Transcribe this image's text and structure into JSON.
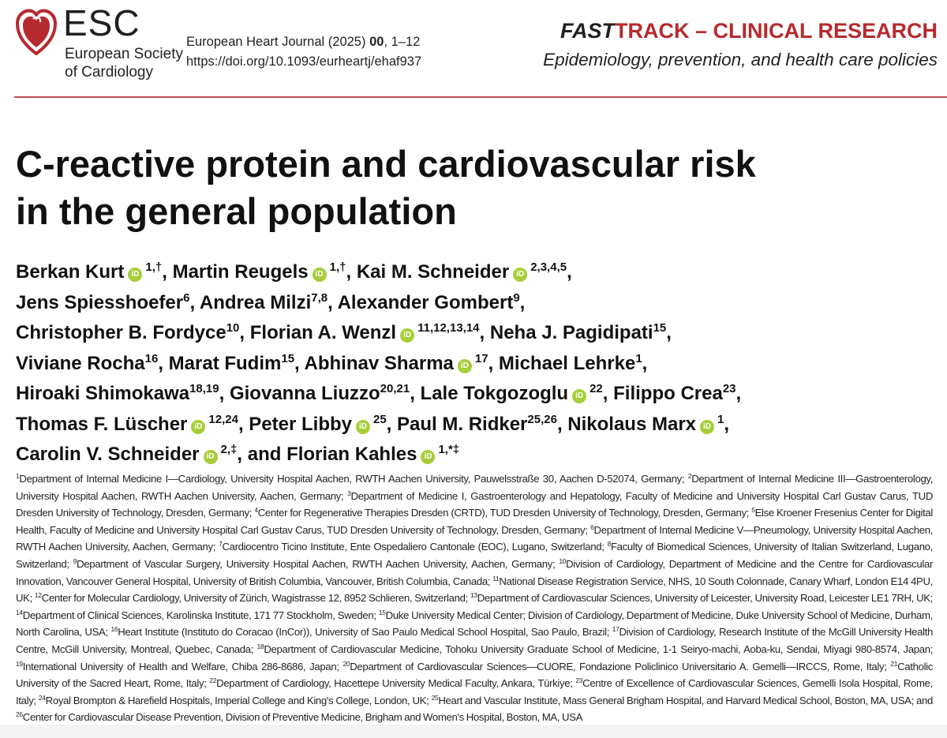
{
  "header": {
    "logo_text": "ESC",
    "society_line1": "European Society",
    "society_line2": "of Cardiology",
    "journal_name": "European Heart Journal (2025)",
    "journal_volume": "00",
    "journal_pages": ", 1–12",
    "doi": "https://doi.org/10.1093/eurheartj/ehaf937",
    "section_prefix": "FAST",
    "section_rest": "TRACK – CLINICAL RESEARCH",
    "subsection": "Epidemiology, prevention, and health care policies",
    "brand_color": "#b52a2e"
  },
  "title": {
    "line1": "C-reactive protein and cardiovascular risk",
    "line2": "in the general population"
  },
  "authors": {
    "lines": [
      [
        {
          "name": "Berkan Kurt",
          "orcid": true,
          "sup": "1,†",
          "sep": ", "
        },
        {
          "name": "Martin Reugels",
          "orcid": true,
          "sup": "1,†",
          "sep": ", "
        },
        {
          "name": "Kai M. Schneider",
          "orcid": true,
          "sup": "2,3,4,5",
          "sep": ","
        }
      ],
      [
        {
          "name": "Jens Spiesshoefer",
          "orcid": false,
          "sup": "6",
          "sep": ", "
        },
        {
          "name": "Andrea Milzi",
          "orcid": false,
          "sup": "7,8",
          "sep": ", "
        },
        {
          "name": "Alexander Gombert",
          "orcid": false,
          "sup": "9",
          "sep": ","
        }
      ],
      [
        {
          "name": "Christopher B. Fordyce",
          "orcid": false,
          "sup": "10",
          "sep": ", "
        },
        {
          "name": "Florian A. Wenzl",
          "orcid": true,
          "sup": "11,12,13,14",
          "sep": ", "
        },
        {
          "name": "Neha J. Pagidipati",
          "orcid": false,
          "sup": "15",
          "sep": ","
        }
      ],
      [
        {
          "name": "Viviane Rocha",
          "orcid": false,
          "sup": "16",
          "sep": ", "
        },
        {
          "name": "Marat Fudim",
          "orcid": false,
          "sup": "15",
          "sep": ", "
        },
        {
          "name": "Abhinav Sharma",
          "orcid": true,
          "sup": "17",
          "sep": ", "
        },
        {
          "name": "Michael Lehrke",
          "orcid": false,
          "sup": "1",
          "sep": ","
        }
      ],
      [
        {
          "name": "Hiroaki Shimokawa",
          "orcid": false,
          "sup": "18,19",
          "sep": ", "
        },
        {
          "name": "Giovanna Liuzzo",
          "orcid": false,
          "sup": "20,21",
          "sep": ", "
        },
        {
          "name": "Lale Tokgozoglu",
          "orcid": true,
          "sup": "22",
          "sep": ", "
        },
        {
          "name": "Filippo Crea",
          "orcid": false,
          "sup": "23",
          "sep": ","
        }
      ],
      [
        {
          "name": "Thomas F. Lüscher",
          "orcid": true,
          "sup": "12,24",
          "sep": ", "
        },
        {
          "name": "Peter Libby",
          "orcid": true,
          "sup": "25",
          "sep": ", "
        },
        {
          "name": "Paul M. Ridker",
          "orcid": false,
          "sup": "25,26",
          "sep": ", "
        },
        {
          "name": "Nikolaus Marx",
          "orcid": true,
          "sup": "1",
          "sep": ","
        }
      ],
      [
        {
          "name": "Carolin V. Schneider",
          "orcid": true,
          "sup": "2,‡",
          "sep": ", and "
        },
        {
          "name": "Florian Kahles",
          "orcid": true,
          "sup": "1,*‡",
          "sep": ""
        }
      ]
    ],
    "orcid_label": "iD",
    "orcid_color": "#a6ce39"
  },
  "affiliations": [
    {
      "num": "1",
      "text": "Department of Internal Medicine I—Cardiology, University Hospital Aachen, RWTH Aachen University, Pauwelsstraße 30, Aachen D-52074, Germany; "
    },
    {
      "num": "2",
      "text": "Department of Internal Medicine III—Gastroenterology, University Hospital Aachen, RWTH Aachen University, Aachen, Germany; "
    },
    {
      "num": "3",
      "text": "Department of Medicine I, Gastroenterology and Hepatology, Faculty of Medicine and University Hospital Carl Gustav Carus, TUD Dresden University of Technology, Dresden, Germany; "
    },
    {
      "num": "4",
      "text": "Center for Regenerative Therapies Dresden (CRTD), TUD Dresden University of Technology, Dresden, Germany; "
    },
    {
      "num": "5",
      "text": "Else Kroener Fresenius Center for Digital Health, Faculty of Medicine and University Hospital Carl Gustav Carus, TUD Dresden University of Technology, Dresden, Germany; "
    },
    {
      "num": "6",
      "text": "Department of Internal Medicine V—Pneumology, University Hospital Aachen, RWTH Aachen University, Aachen, Germany; "
    },
    {
      "num": "7",
      "text": "Cardiocentro Ticino Institute, Ente Ospedaliero Cantonale (EOC), Lugano, Switzerland; "
    },
    {
      "num": "8",
      "text": "Faculty of Biomedical Sciences, University of Italian Switzerland, Lugano, Switzerland; "
    },
    {
      "num": "9",
      "text": "Department of Vascular Surgery, University Hospital Aachen, RWTH Aachen University, Aachen, Germany; "
    },
    {
      "num": "10",
      "text": "Division of Cardiology, Department of Medicine and the Centre for Cardiovascular Innovation, Vancouver General Hospital, University of British Columbia, Vancouver, British Columbia, Canada; "
    },
    {
      "num": "11",
      "text": "National Disease Registration Service, NHS, 10 South Colonnade, Canary Wharf, London E14 4PU, UK; "
    },
    {
      "num": "12",
      "text": "Center for Molecular Cardiology, University of Zürich, Wagistrasse 12, 8952 Schlieren, Switzerland; "
    },
    {
      "num": "13",
      "text": "Department of Cardiovascular Sciences, University of Leicester, University Road, Leicester LE1 7RH, UK; "
    },
    {
      "num": "14",
      "text": "Department of Clinical Sciences, Karolinska Institute, 171 77 Stockholm, Sweden; "
    },
    {
      "num": "15",
      "text": "Duke University Medical Center; Division of Cardiology, Department of Medicine, Duke University School of Medicine, Durham, North Carolina, USA; "
    },
    {
      "num": "16",
      "text": "Heart Institute (Instituto do Coracao (InCor)), University of Sao Paulo Medical School Hospital, Sao Paulo, Brazil; "
    },
    {
      "num": "17",
      "text": "Division of Cardiology, Research Institute of the McGill University Health Centre, McGill University, Montreal, Quebec, Canada; "
    },
    {
      "num": "18",
      "text": "Department of Cardiovascular Medicine, Tohoku University Graduate School of Medicine, 1-1 Seiryo-machi, Aoba-ku, Sendai, Miyagi 980-8574, Japan; "
    },
    {
      "num": "19",
      "text": "International University of Health and Welfare, Chiba 286-8686, Japan; "
    },
    {
      "num": "20",
      "text": "Department of Cardiovascular Sciences—CUORE, Fondazione Policlinico Universitario A. Gemelli—IRCCS, Rome, Italy; "
    },
    {
      "num": "21",
      "text": "Catholic University of the Sacred Heart, Rome, Italy; "
    },
    {
      "num": "22",
      "text": "Department of Cardiology, Hacettepe University Medical Faculty, Ankara, Türkiye; "
    },
    {
      "num": "23",
      "text": "Centre of Excellence of Cardiovascular Sciences, Gemelli Isola Hospital, Rome, Italy; "
    },
    {
      "num": "24",
      "text": "Royal Brompton & Harefield Hospitals, Imperial College and King's College, London, UK; "
    },
    {
      "num": "25",
      "text": "Heart and Vascular Institute, Mass General Brigham Hospital, and Harvard Medical School, Boston, MA, USA; and "
    },
    {
      "num": "26",
      "text": "Center for Cardiovascular Disease Prevention, Division of Preventive Medicine, Brigham and Women's Hospital, Boston, MA, USA"
    }
  ]
}
